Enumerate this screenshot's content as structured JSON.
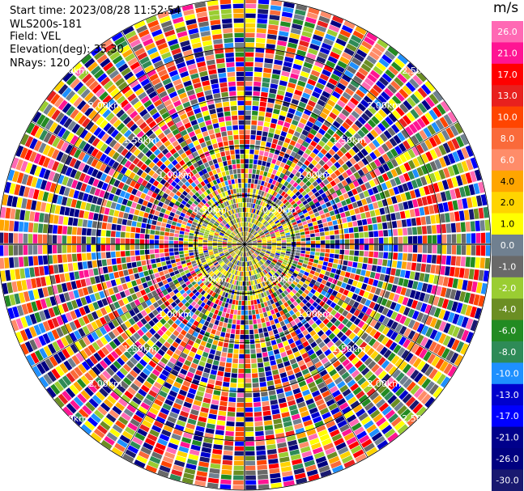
{
  "info": {
    "start_time_label": "Start time:",
    "start_time": "2023/08/28 11:52:54",
    "instrument": "WLS200s-181",
    "field_label": "Field:",
    "field": "VEL",
    "elevation_label": "Elevation(deg):",
    "elevation": "35.30",
    "nrays_label": "NRays:",
    "nrays": "120"
  },
  "chart_data": {
    "type": "heatmap",
    "projection": "polar-ppi",
    "field": "VEL",
    "units": "m/s",
    "n_rays": 120,
    "range_rings_km": [
      0.5,
      1.0,
      1.5,
      2.0,
      2.5
    ],
    "ring_labels": [
      "0.50km",
      "1.00km",
      "1.50km",
      "2.00km",
      "2.50km"
    ],
    "spoke_step_deg": 30,
    "colorbar": {
      "ticks": [
        "26.0",
        "21.0",
        "17.0",
        "13.0",
        "10.0",
        "8.0",
        "6.0",
        "4.0",
        "2.0",
        "1.0",
        "0.0",
        "-1.0",
        "-2.0",
        "-4.0",
        "-6.0",
        "-8.0",
        "-10.0",
        "-13.0",
        "-17.0",
        "-21.0",
        "-26.0",
        "-30.0"
      ],
      "colors": [
        "#ff69b4",
        "#ff1493",
        "#ff0000",
        "#e8201e",
        "#ff4500",
        "#fa6a3a",
        "#ff8c69",
        "#ffa500",
        "#ffd400",
        "#ffff00",
        "#708090",
        "#696969",
        "#9acd32",
        "#6b8e23",
        "#228b22",
        "#2e8b57",
        "#1e90ff",
        "#0000cd",
        "#0000ff",
        "#00008b",
        "#000080",
        "#191970"
      ]
    }
  }
}
